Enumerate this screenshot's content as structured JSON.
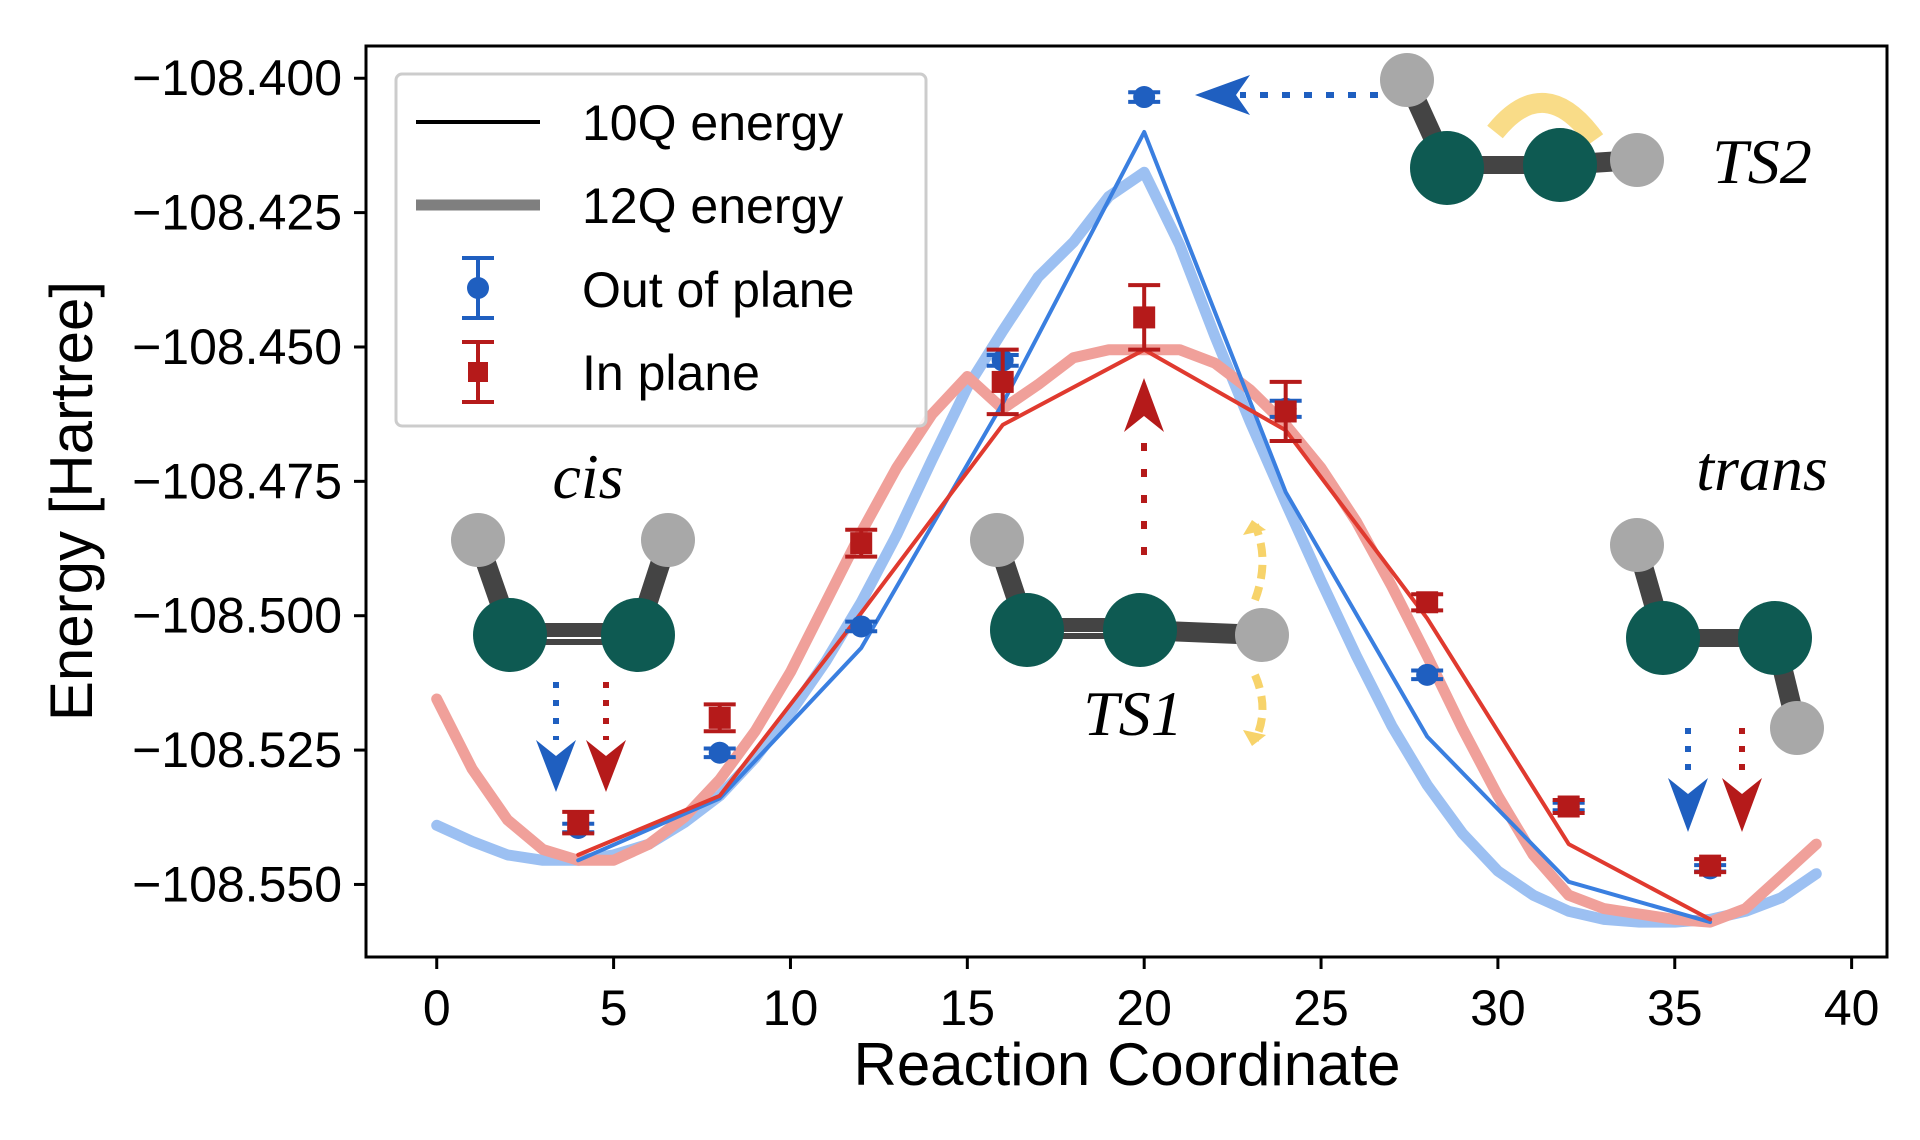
{
  "chart_data": {
    "type": "line",
    "xlabel": "Reaction Coordinate",
    "ylabel": "Energy [Hartree]",
    "xlim": [
      -2,
      41
    ],
    "ylim": [
      -108.5635,
      -108.394
    ],
    "xticks": [
      0,
      5,
      10,
      15,
      20,
      25,
      30,
      35,
      40
    ],
    "xtick_labels": [
      "0",
      "5",
      "10",
      "15",
      "20",
      "25",
      "30",
      "35",
      "40"
    ],
    "yticks": [
      -108.4,
      -108.425,
      -108.45,
      -108.475,
      -108.5,
      -108.525,
      -108.55
    ],
    "ytick_labels": [
      "−108.400",
      "−108.425",
      "−108.450",
      "−108.475",
      "−108.500",
      "−108.525",
      "−108.550"
    ],
    "grid": false,
    "legend_position": "top-left",
    "legend": [
      {
        "label": "10Q energy",
        "kind": "line-thin",
        "color": "#000000"
      },
      {
        "label": "12Q energy",
        "kind": "line-thick",
        "color": "#7f7f7f"
      },
      {
        "label": "Out of plane",
        "kind": "errorbar-circle",
        "color": "#1f5fc0"
      },
      {
        "label": "In plane",
        "kind": "errorbar-square",
        "color": "#b51a1a"
      }
    ],
    "series": [
      {
        "key": "out_10q",
        "style": "line-thin",
        "color": "#3a7fe0",
        "x": [
          4,
          8,
          12,
          16,
          20,
          24,
          28,
          32,
          36
        ],
        "y": [
          -108.5455,
          -108.534,
          -108.506,
          -108.4605,
          -108.41,
          -108.477,
          -108.5225,
          -108.5495,
          -108.557
        ]
      },
      {
        "key": "in_10q",
        "style": "line-thin",
        "color": "#e03a2f",
        "x": [
          4,
          8,
          12,
          16,
          20,
          24,
          28,
          32,
          36
        ],
        "y": [
          -108.5445,
          -108.5335,
          -108.4995,
          -108.4645,
          -108.4505,
          -108.4655,
          -108.5005,
          -108.5425,
          -108.5565
        ]
      },
      {
        "key": "out_12q",
        "style": "line-thick",
        "color": "#9cc0f2",
        "x": [
          0,
          1,
          2,
          3,
          4,
          5,
          6,
          7,
          8,
          9,
          10,
          11,
          12,
          13,
          14,
          15,
          16,
          17,
          18,
          19,
          20,
          21,
          22,
          23,
          24,
          25,
          26,
          27,
          28,
          29,
          30,
          31,
          32,
          33,
          34,
          35,
          36,
          37,
          38,
          39
        ],
        "y": [
          -108.539,
          -108.542,
          -108.5445,
          -108.5455,
          -108.5455,
          -108.5445,
          -108.5425,
          -108.5385,
          -108.5335,
          -108.5265,
          -108.518,
          -108.5085,
          -108.4975,
          -108.485,
          -108.471,
          -108.4575,
          -108.447,
          -108.437,
          -108.4305,
          -108.422,
          -108.4175,
          -108.431,
          -108.448,
          -108.464,
          -108.479,
          -108.4935,
          -108.5075,
          -108.5205,
          -108.5315,
          -108.5405,
          -108.5475,
          -108.552,
          -108.555,
          -108.5565,
          -108.557,
          -108.557,
          -108.5565,
          -108.555,
          -108.5525,
          -108.548
        ]
      },
      {
        "key": "in_12q",
        "style": "line-thick",
        "color": "#f0a09a",
        "x": [
          0,
          1,
          2,
          3,
          4,
          5,
          6,
          7,
          8,
          9,
          10,
          11,
          12,
          13,
          14,
          15,
          16,
          17,
          18,
          19,
          20,
          21,
          22,
          23,
          24,
          25,
          26,
          27,
          28,
          29,
          30,
          31,
          32,
          33,
          34,
          35,
          36,
          37,
          38,
          39
        ],
        "y": [
          -108.5155,
          -108.5285,
          -108.538,
          -108.5435,
          -108.5455,
          -108.5455,
          -108.5425,
          -108.5375,
          -108.5305,
          -108.5215,
          -108.5105,
          -108.4975,
          -108.4845,
          -108.4725,
          -108.4625,
          -108.4555,
          -108.4615,
          -108.457,
          -108.452,
          -108.4505,
          -108.4505,
          -108.4505,
          -108.453,
          -108.458,
          -108.4645,
          -108.4725,
          -108.4825,
          -108.4945,
          -108.5075,
          -108.521,
          -108.5335,
          -108.5445,
          -108.552,
          -108.5545,
          -108.5555,
          -108.5565,
          -108.557,
          -108.5545,
          -108.5485,
          -108.5425
        ]
      }
    ],
    "markers": [
      {
        "name": "Out of plane",
        "shape": "circle",
        "color": "#1f5fc0",
        "x": [
          4,
          8,
          12,
          16,
          20,
          24,
          28,
          32,
          36
        ],
        "y": [
          -108.5395,
          -108.5255,
          -108.502,
          -108.4525,
          -108.4035,
          -108.4615,
          -108.511,
          -108.5355,
          -108.547
        ],
        "err": [
          0.0008,
          0.0008,
          0.0009,
          0.001,
          0.0009,
          0.0015,
          0.0008,
          0.0007,
          0.0006
        ]
      },
      {
        "name": "In plane",
        "shape": "square",
        "color": "#b51a1a",
        "x": [
          4,
          8,
          12,
          16,
          20,
          24,
          28,
          32,
          36
        ],
        "y": [
          -108.5385,
          -108.519,
          -108.4865,
          -108.4565,
          -108.4445,
          -108.462,
          -108.4975,
          -108.5355,
          -108.5465
        ],
        "err": [
          0.002,
          0.0025,
          0.0025,
          0.006,
          0.006,
          0.0055,
          0.0015,
          0.0012,
          0.0012
        ]
      }
    ],
    "annotations": {
      "cis": "cis",
      "ts1": "TS1",
      "ts2": "TS2",
      "trans": "trans"
    }
  }
}
